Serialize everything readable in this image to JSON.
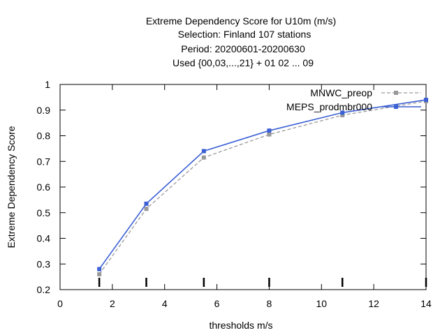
{
  "chart_data": {
    "type": "line",
    "title_lines": [
      "Extreme Dependency Score  for U10m (m/s)",
      "Selection: Finland    107 stations",
      "Period: 20200601-20200630",
      "Used {00,03,...,21} + 01 02 ... 09"
    ],
    "xlabel": "thresholds m/s",
    "ylabel": "Extreme Dependency Score",
    "xlim": [
      0,
      14
    ],
    "ylim": [
      0.2,
      1.0
    ],
    "x_ticks": [
      0,
      2,
      4,
      6,
      8,
      10,
      12,
      14
    ],
    "y_ticks": [
      0.2,
      0.3,
      0.4,
      0.5,
      0.6,
      0.7,
      0.8,
      0.9,
      1
    ],
    "threshold_marks": [
      1.5,
      3.3,
      5.5,
      8,
      10.8,
      14
    ],
    "legend_position": "top-right",
    "grid": false,
    "series": [
      {
        "name": "MNWC_preop",
        "color": "#999999",
        "dashed": true,
        "x": [
          1.5,
          3.3,
          5.5,
          8,
          10.8,
          14
        ],
        "y": [
          0.26,
          0.515,
          0.715,
          0.805,
          0.88,
          0.935
        ]
      },
      {
        "name": "MEPS_prodmbr000",
        "color": "#3b5fd4",
        "dashed": false,
        "x": [
          1.5,
          3.3,
          5.5,
          8,
          10.8,
          14
        ],
        "y": [
          0.28,
          0.535,
          0.74,
          0.82,
          0.89,
          0.94
        ]
      }
    ]
  }
}
